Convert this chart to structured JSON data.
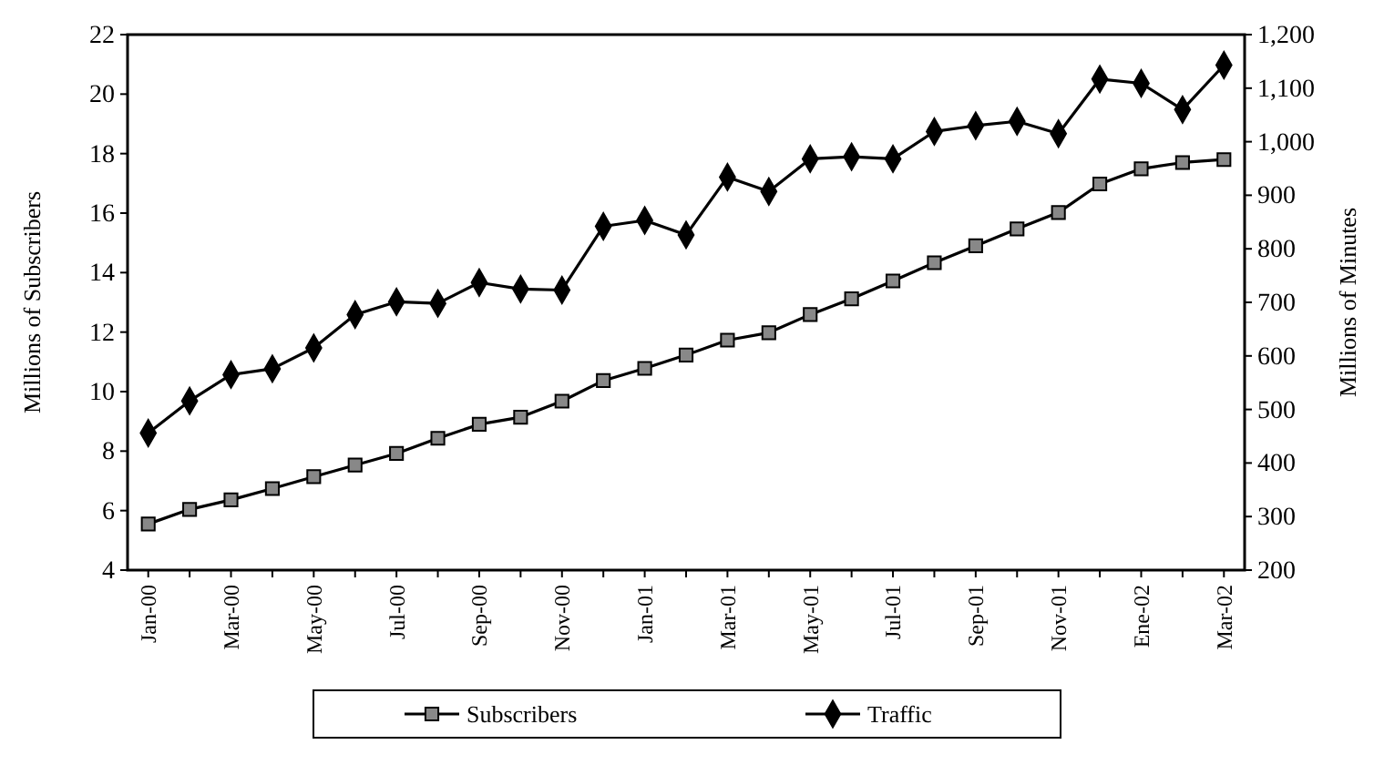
{
  "chart_data": {
    "type": "line",
    "categories": [
      "Jan-00",
      null,
      "Mar-00",
      null,
      "May-00",
      null,
      "Jul-00",
      null,
      "Sep-00",
      null,
      "Nov-00",
      null,
      "Jan-01",
      null,
      "Mar-01",
      null,
      "May-01",
      null,
      "Jul-01",
      null,
      "Sep-01",
      null,
      "Nov-01",
      null,
      "Ene-02",
      null,
      "Mar-02"
    ],
    "series": [
      {
        "name": "Subscribers",
        "color": "#000000",
        "marker": "square",
        "values": [
          5.55,
          6.04,
          6.36,
          6.74,
          7.14,
          7.53,
          7.92,
          8.43,
          8.9,
          9.14,
          9.68,
          10.37,
          10.78,
          11.23,
          11.73,
          11.98,
          12.59,
          13.12,
          13.72,
          14.33,
          14.9,
          15.47,
          16.02,
          16.98,
          17.49,
          17.7,
          17.8
        ]
      },
      {
        "name": "Traffic",
        "color": "#000000",
        "marker": "diamond",
        "axis": "y2",
        "values": [
          456,
          516,
          565,
          576,
          615,
          677,
          701,
          698,
          737,
          725,
          723,
          842,
          853,
          826,
          934,
          907,
          968,
          972,
          968,
          1019,
          1030,
          1038,
          1015,
          1117,
          1109,
          1060,
          1143
        ]
      }
    ],
    "ylabel": "Millions of Subscribers",
    "y2label": "Millions of Minutes",
    "ylim": [
      4,
      22
    ],
    "yticks": [
      4,
      6,
      8,
      10,
      12,
      14,
      16,
      18,
      20,
      22
    ],
    "y2lim": [
      200,
      1200
    ],
    "y2ticks": [
      200,
      300,
      400,
      500,
      600,
      700,
      800,
      900,
      {
        "value": 1000,
        "label": "1,000"
      },
      {
        "value": 1100,
        "label": "1,100"
      },
      {
        "value": 1200,
        "label": "1,200"
      }
    ],
    "legend": "bottom",
    "grid": false,
    "line_style": "solid"
  }
}
